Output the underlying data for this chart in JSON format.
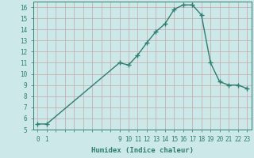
{
  "x_values": [
    0,
    1,
    9,
    10,
    11,
    12,
    13,
    14,
    15,
    16,
    17,
    18,
    19,
    20,
    21,
    22,
    23
  ],
  "y_values": [
    5.5,
    5.5,
    11.0,
    10.8,
    11.7,
    12.8,
    13.8,
    14.5,
    15.8,
    16.2,
    16.2,
    15.3,
    11.0,
    9.3,
    9.0,
    9.0,
    8.7
  ],
  "line_color": "#2e7d6e",
  "bg_color": "#cce8e8",
  "grid_color": "#c4a8a8",
  "xlabel": "Humidex (Indice chaleur)",
  "xlim": [
    -0.5,
    23.5
  ],
  "ylim": [
    5,
    16.5
  ],
  "yticks": [
    5,
    6,
    7,
    8,
    9,
    10,
    11,
    12,
    13,
    14,
    15,
    16
  ],
  "marker": "+",
  "linewidth": 1.0,
  "markersize": 4,
  "tick_fontsize": 5.5,
  "xlabel_fontsize": 6.5
}
